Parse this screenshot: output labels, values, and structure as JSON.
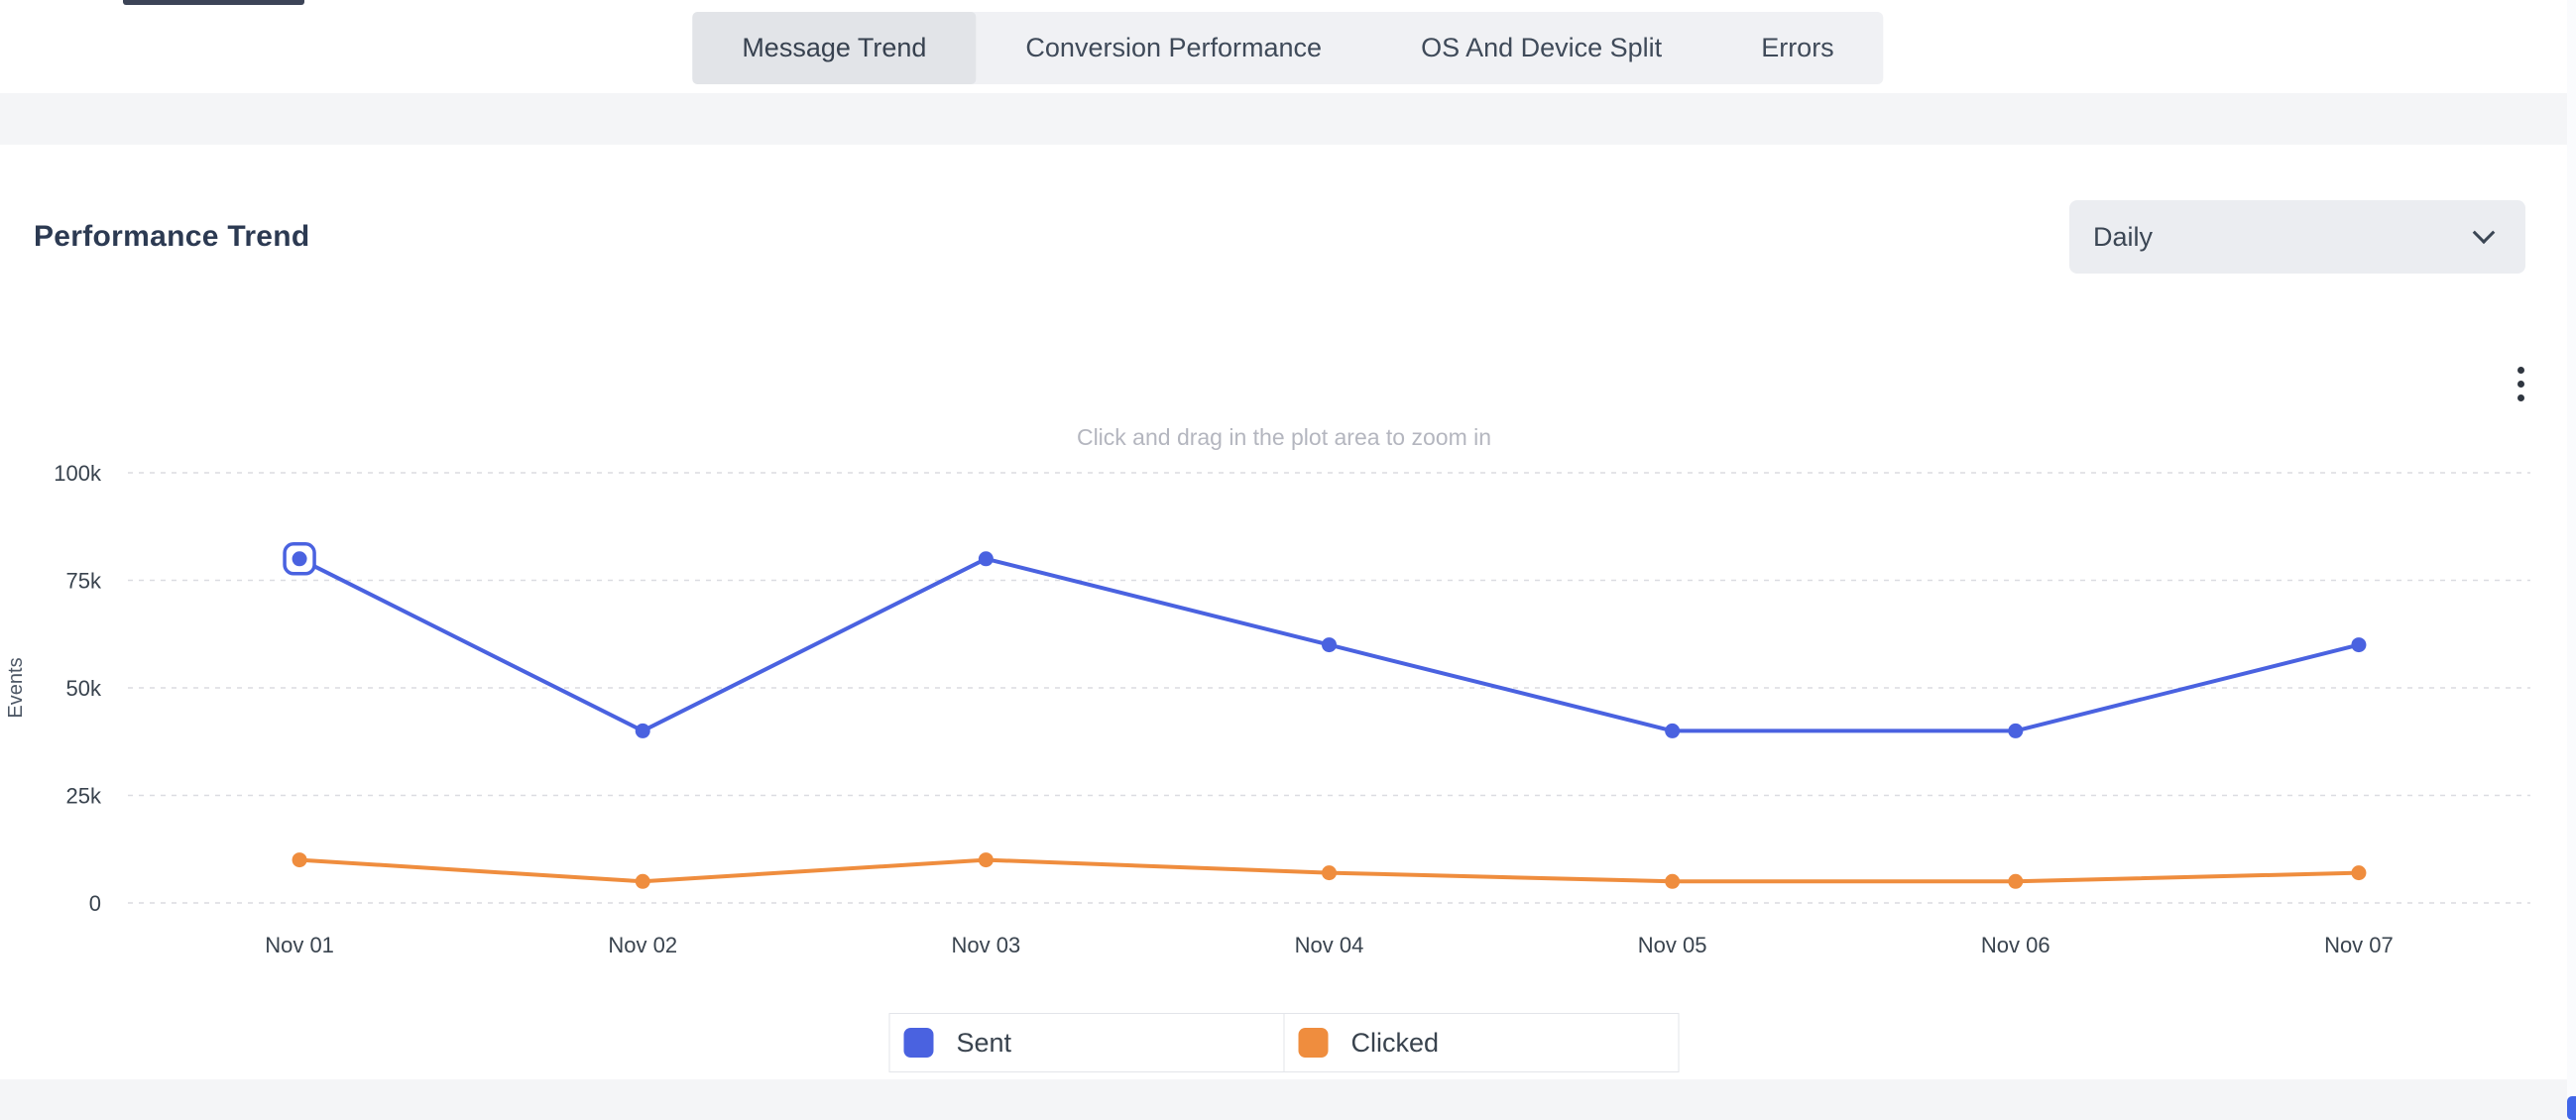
{
  "header": {
    "tabs": [
      {
        "label": "Message Trend",
        "active": true
      },
      {
        "label": "Conversion Performance",
        "active": false
      },
      {
        "label": "OS And Device Split",
        "active": false
      },
      {
        "label": "Errors",
        "active": false
      }
    ]
  },
  "card": {
    "title": "Performance Trend",
    "granularity_dropdown": {
      "selected": "Daily"
    }
  },
  "chart_data": {
    "type": "line",
    "subtitle": "Click and drag in the plot area to zoom in",
    "ylabel": "Events",
    "categories": [
      "Nov 01",
      "Nov 02",
      "Nov 03",
      "Nov 04",
      "Nov 05",
      "Nov 06",
      "Nov 07"
    ],
    "series": [
      {
        "name": "Sent",
        "color": "#4a62e0",
        "values": [
          80000,
          40000,
          80000,
          60000,
          40000,
          40000,
          60000
        ]
      },
      {
        "name": "Clicked",
        "color": "#ef8d3e",
        "values": [
          10000,
          5000,
          10000,
          7000,
          5000,
          5000,
          7000
        ]
      }
    ],
    "ylim": [
      0,
      100000
    ],
    "yticks": [
      0,
      25000,
      50000,
      75000,
      100000
    ],
    "ytick_labels": [
      "0",
      "25k",
      "50k",
      "75k",
      "100k"
    ],
    "grid": "dashed-horizontal",
    "legend_position": "bottom",
    "selected_point": {
      "series": "Sent",
      "index": 0
    }
  }
}
